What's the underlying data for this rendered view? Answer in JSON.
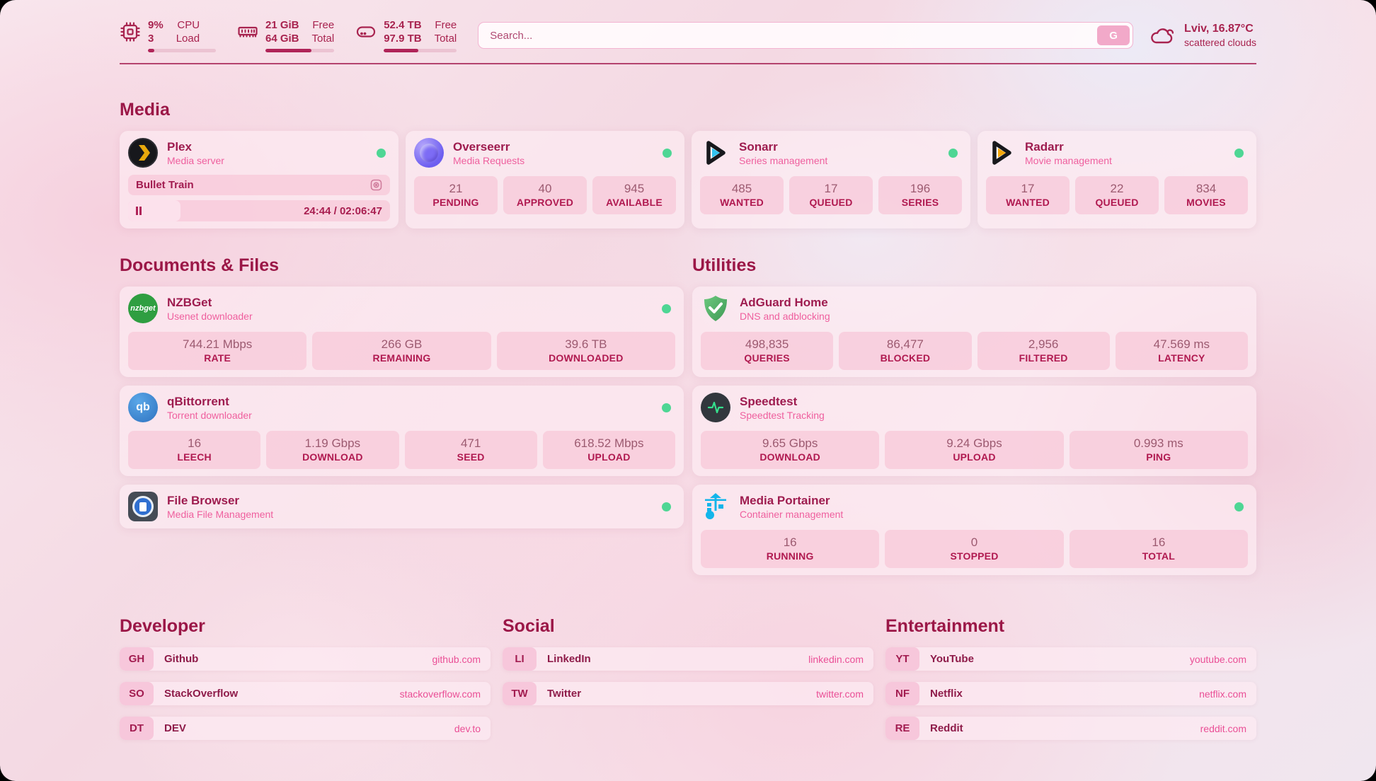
{
  "colors": {
    "accent": "#a81e50",
    "pink": "#ef5f9e",
    "online_dot": "#4ed694"
  },
  "topbar": {
    "cpu": {
      "values": [
        "9%",
        "3"
      ],
      "labels": [
        "CPU",
        "Load"
      ],
      "progress": 9
    },
    "ram": {
      "values": [
        "21 GiB",
        "64 GiB"
      ],
      "labels": [
        "Free",
        "Total"
      ],
      "progress": 67
    },
    "disk": {
      "values": [
        "52.4 TB",
        "97.9 TB"
      ],
      "labels": [
        "Free",
        "Total"
      ],
      "progress": 47
    },
    "search": {
      "placeholder": "Search...",
      "button_label": "G"
    },
    "weather": {
      "location": "Lviv, 16.87°C",
      "condition": "scattered clouds"
    }
  },
  "media": {
    "title": "Media",
    "plex": {
      "name": "Plex",
      "desc": "Media server",
      "now_playing": "Bullet Train",
      "time": "24:44 / 02:06:47",
      "progress": 20
    },
    "overseerr": {
      "name": "Overseerr",
      "desc": "Media Requests",
      "stats": [
        {
          "value": "21",
          "label": "PENDING"
        },
        {
          "value": "40",
          "label": "APPROVED"
        },
        {
          "value": "945",
          "label": "AVAILABLE"
        }
      ]
    },
    "sonarr": {
      "name": "Sonarr",
      "desc": "Series management",
      "stats": [
        {
          "value": "485",
          "label": "WANTED"
        },
        {
          "value": "17",
          "label": "QUEUED"
        },
        {
          "value": "196",
          "label": "SERIES"
        }
      ]
    },
    "radarr": {
      "name": "Radarr",
      "desc": "Movie management",
      "stats": [
        {
          "value": "17",
          "label": "WANTED"
        },
        {
          "value": "22",
          "label": "QUEUED"
        },
        {
          "value": "834",
          "label": "MOVIES"
        }
      ]
    }
  },
  "documents": {
    "title": "Documents & Files",
    "nzbget": {
      "name": "NZBGet",
      "desc": "Usenet downloader",
      "icon_text": "nzbget",
      "stats": [
        {
          "value": "744.21 Mbps",
          "label": "RATE"
        },
        {
          "value": "266 GB",
          "label": "REMAINING"
        },
        {
          "value": "39.6 TB",
          "label": "DOWNLOADED"
        }
      ]
    },
    "qbittorrent": {
      "name": "qBittorrent",
      "desc": "Torrent downloader",
      "icon_text": "qb",
      "stats": [
        {
          "value": "16",
          "label": "LEECH"
        },
        {
          "value": "1.19 Gbps",
          "label": "DOWNLOAD"
        },
        {
          "value": "471",
          "label": "SEED"
        },
        {
          "value": "618.52 Mbps",
          "label": "UPLOAD"
        }
      ]
    },
    "filebrowser": {
      "name": "File Browser",
      "desc": "Media File Management"
    }
  },
  "utilities": {
    "title": "Utilities",
    "adguard": {
      "name": "AdGuard Home",
      "desc": "DNS and adblocking",
      "stats": [
        {
          "value": "498,835",
          "label": "QUERIES"
        },
        {
          "value": "86,477",
          "label": "BLOCKED"
        },
        {
          "value": "2,956",
          "label": "FILTERED"
        },
        {
          "value": "47.569 ms",
          "label": "LATENCY"
        }
      ]
    },
    "speedtest": {
      "name": "Speedtest",
      "desc": "Speedtest Tracking",
      "stats": [
        {
          "value": "9.65 Gbps",
          "label": "DOWNLOAD"
        },
        {
          "value": "9.24 Gbps",
          "label": "UPLOAD"
        },
        {
          "value": "0.993 ms",
          "label": "PING"
        }
      ]
    },
    "portainer": {
      "name": "Media Portainer",
      "desc": "Container management",
      "stats": [
        {
          "value": "16",
          "label": "RUNNING"
        },
        {
          "value": "0",
          "label": "STOPPED"
        },
        {
          "value": "16",
          "label": "TOTAL"
        }
      ]
    }
  },
  "links": {
    "developer": {
      "title": "Developer",
      "items": [
        {
          "abbr": "GH",
          "name": "Github",
          "url": "github.com"
        },
        {
          "abbr": "SO",
          "name": "StackOverflow",
          "url": "stackoverflow.com"
        },
        {
          "abbr": "DT",
          "name": "DEV",
          "url": "dev.to"
        }
      ]
    },
    "social": {
      "title": "Social",
      "items": [
        {
          "abbr": "LI",
          "name": "LinkedIn",
          "url": "linkedin.com"
        },
        {
          "abbr": "TW",
          "name": "Twitter",
          "url": "twitter.com"
        }
      ]
    },
    "entertainment": {
      "title": "Entertainment",
      "items": [
        {
          "abbr": "YT",
          "name": "YouTube",
          "url": "youtube.com"
        },
        {
          "abbr": "NF",
          "name": "Netflix",
          "url": "netflix.com"
        },
        {
          "abbr": "RE",
          "name": "Reddit",
          "url": "reddit.com"
        }
      ]
    }
  }
}
